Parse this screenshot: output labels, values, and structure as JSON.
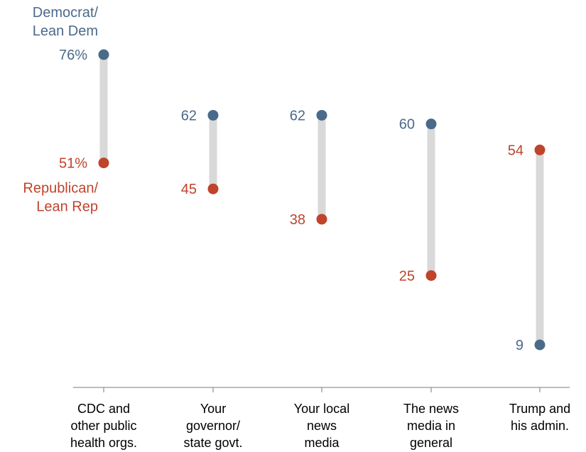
{
  "chart_data": {
    "type": "dumbbell",
    "categories": [
      [
        "CDC and",
        "other public",
        "health orgs."
      ],
      [
        "Your",
        "governor/",
        "state govt."
      ],
      [
        "Your local",
        "news",
        "media"
      ],
      [
        "The news",
        "media in",
        "general"
      ],
      [
        "Trump and",
        "his admin."
      ]
    ],
    "series": [
      {
        "name": "Democrat/ Lean Dem",
        "legend_lines": [
          "Democrat/",
          "Lean Dem"
        ],
        "values": [
          76,
          62,
          62,
          60,
          9
        ],
        "labels": [
          "76%",
          "62",
          "62",
          "60",
          "9"
        ],
        "color": "#4a6a89"
      },
      {
        "name": "Republican/ Lean Rep",
        "legend_lines": [
          "Republican/",
          "Lean Rep"
        ],
        "values": [
          51,
          45,
          38,
          25,
          54
        ],
        "labels": [
          "51%",
          "45",
          "38",
          "25",
          "54"
        ],
        "color": "#c0432b"
      }
    ],
    "ylim": [
      0,
      76
    ],
    "connector_color": "#d9d9d9",
    "axis_color": "#7a7a7a",
    "legend_placement": "left"
  }
}
